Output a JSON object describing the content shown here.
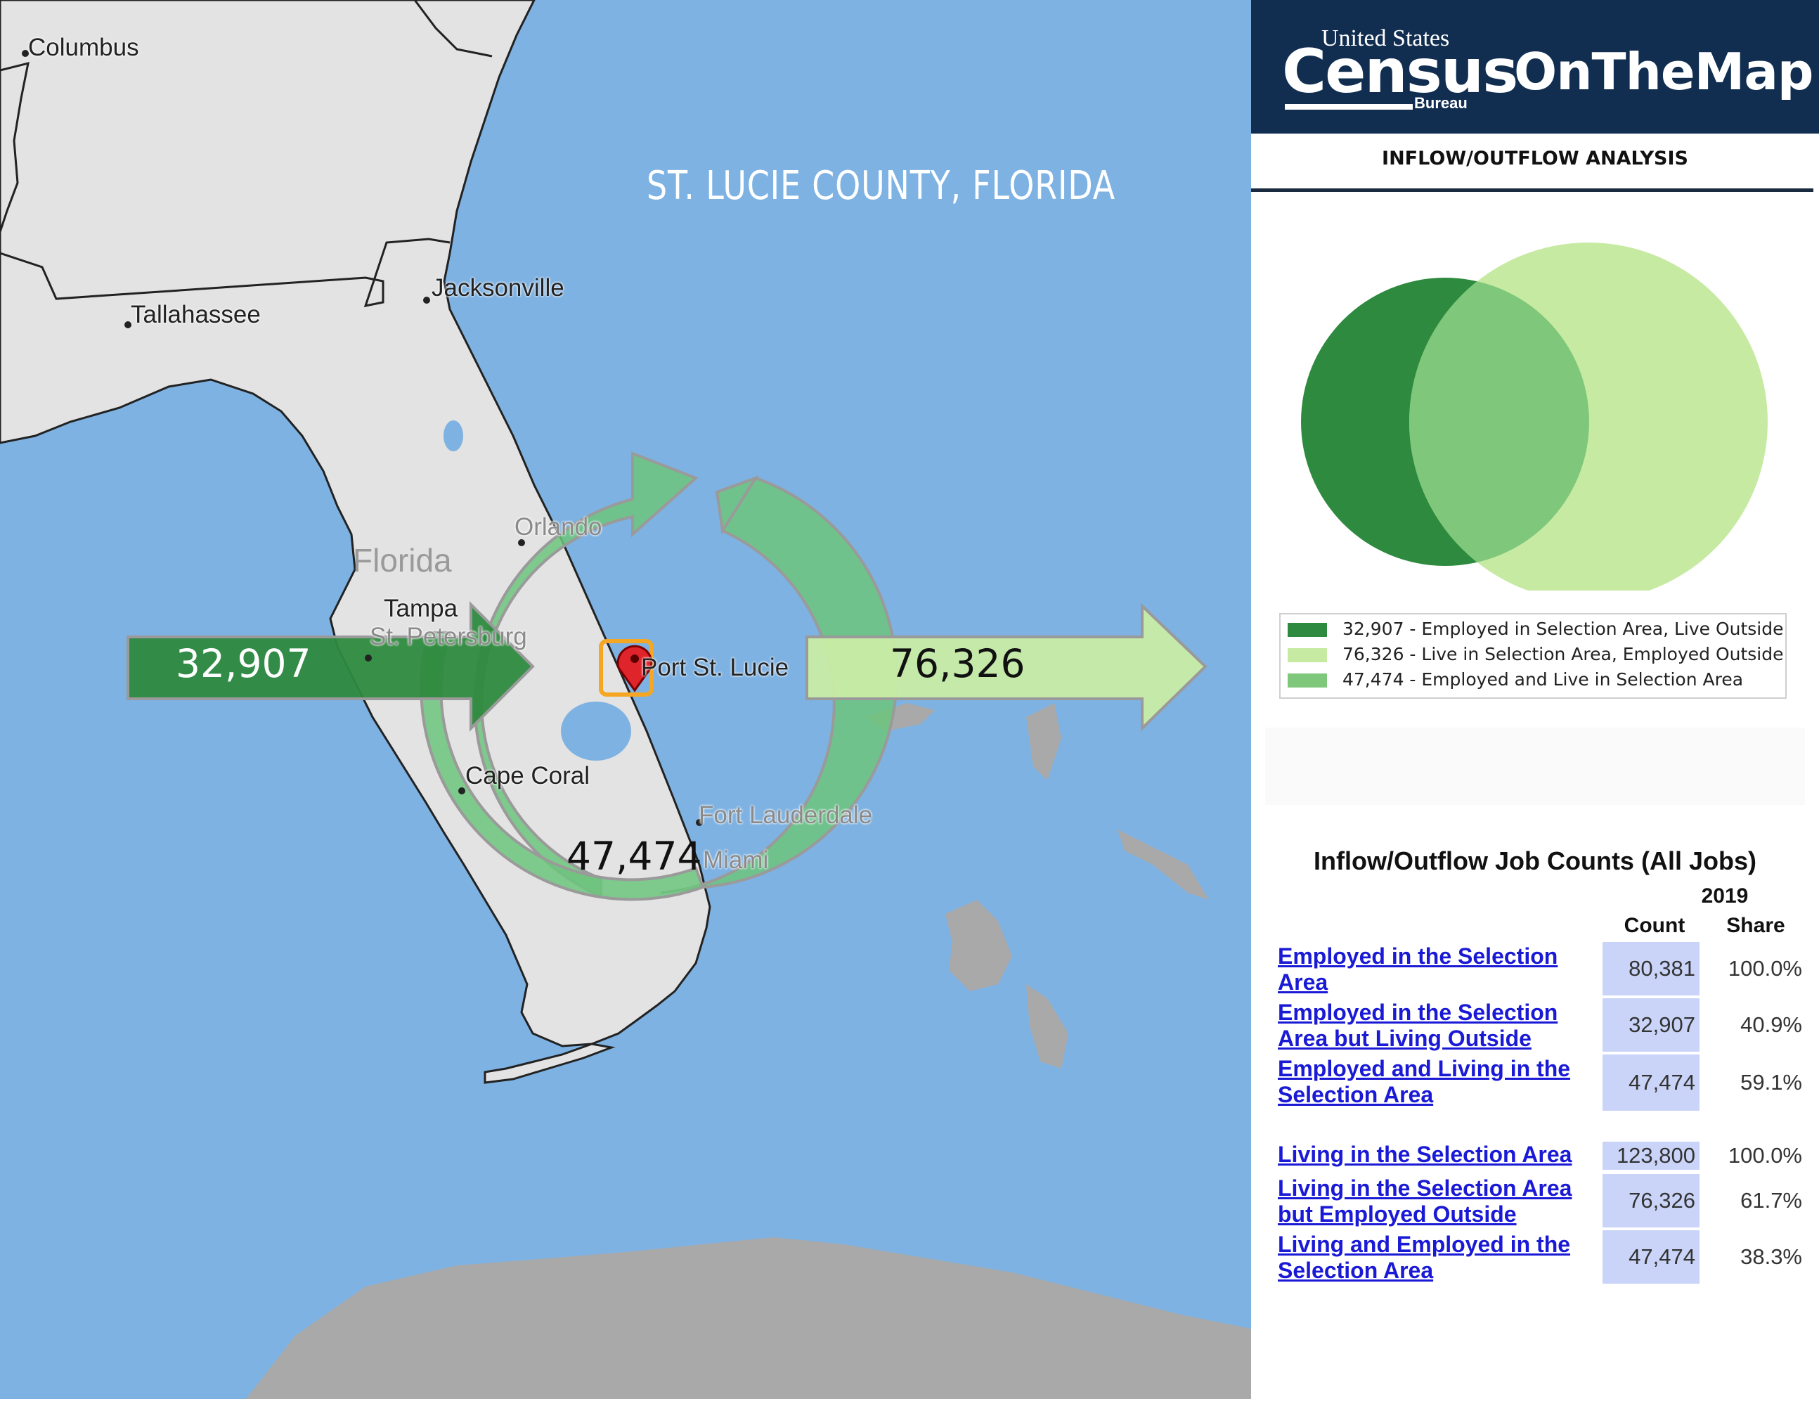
{
  "map": {
    "title": "ST. LUCIE COUNTY, FLORIDA",
    "state_label": "Florida",
    "colors": {
      "water": "#7eb2e2",
      "land": "#e3e3e3",
      "foreign_land": "#a9a9a9",
      "selection": "#f5a623",
      "marker": "#e0242b"
    },
    "cities": {
      "columbus": "Columbus",
      "tallahassee": "Tallahassee",
      "jacksonville": "Jacksonville",
      "orlando": "Orlando",
      "tampa": "Tampa",
      "st_petersburg": "St. Petersburg",
      "port_st_lucie": "Port St. Lucie",
      "cape_coral": "Cape Coral",
      "fort_lauderdale": "Fort Lauderdale",
      "miami": "Miami"
    },
    "flows": {
      "inflow": {
        "value": "32,907",
        "color": "#2e8a3e"
      },
      "outflow": {
        "value": "76,326",
        "color": "#c9eca5"
      },
      "interior": {
        "value": "47,474",
        "color": "#6cc47c"
      }
    }
  },
  "panel": {
    "brand": {
      "us": "United States",
      "census": "Census",
      "bureau": "Bureau",
      "product": "OnTheMap"
    },
    "analysis_title": "INFLOW/OUTFLOW ANALYSIS",
    "venn": {
      "colors": {
        "employed_outside": "#2e8a3e",
        "live_outside": "#c7eaa3",
        "overlap": "#7fc77a"
      },
      "legend": [
        "32,907 - Employed in Selection Area, Live Outside",
        "76,326 - Live in Selection Area, Employed Outside",
        "47,474 - Employed and Live in Selection Area"
      ]
    },
    "job_counts": {
      "title": "Inflow/Outflow Job Counts (All Jobs)",
      "year": "2019",
      "col_count": "Count",
      "col_share": "Share",
      "rows": [
        {
          "label": "Employed in the Selection Area",
          "count": "80,381",
          "share": "100.0%"
        },
        {
          "label": "Employed in the Selection Area but Living Outside",
          "count": "32,907",
          "share": "40.9%"
        },
        {
          "label": "Employed and Living in the Selection Area",
          "count": "47,474",
          "share": "59.1%"
        },
        {
          "label": "Living in the Selection Area",
          "count": "123,800",
          "share": "100.0%"
        },
        {
          "label": "Living in the Selection Area but Employed Outside",
          "count": "76,326",
          "share": "61.7%"
        },
        {
          "label": "Living and Employed in the Selection Area",
          "count": "47,474",
          "share": "38.3%"
        }
      ]
    }
  }
}
